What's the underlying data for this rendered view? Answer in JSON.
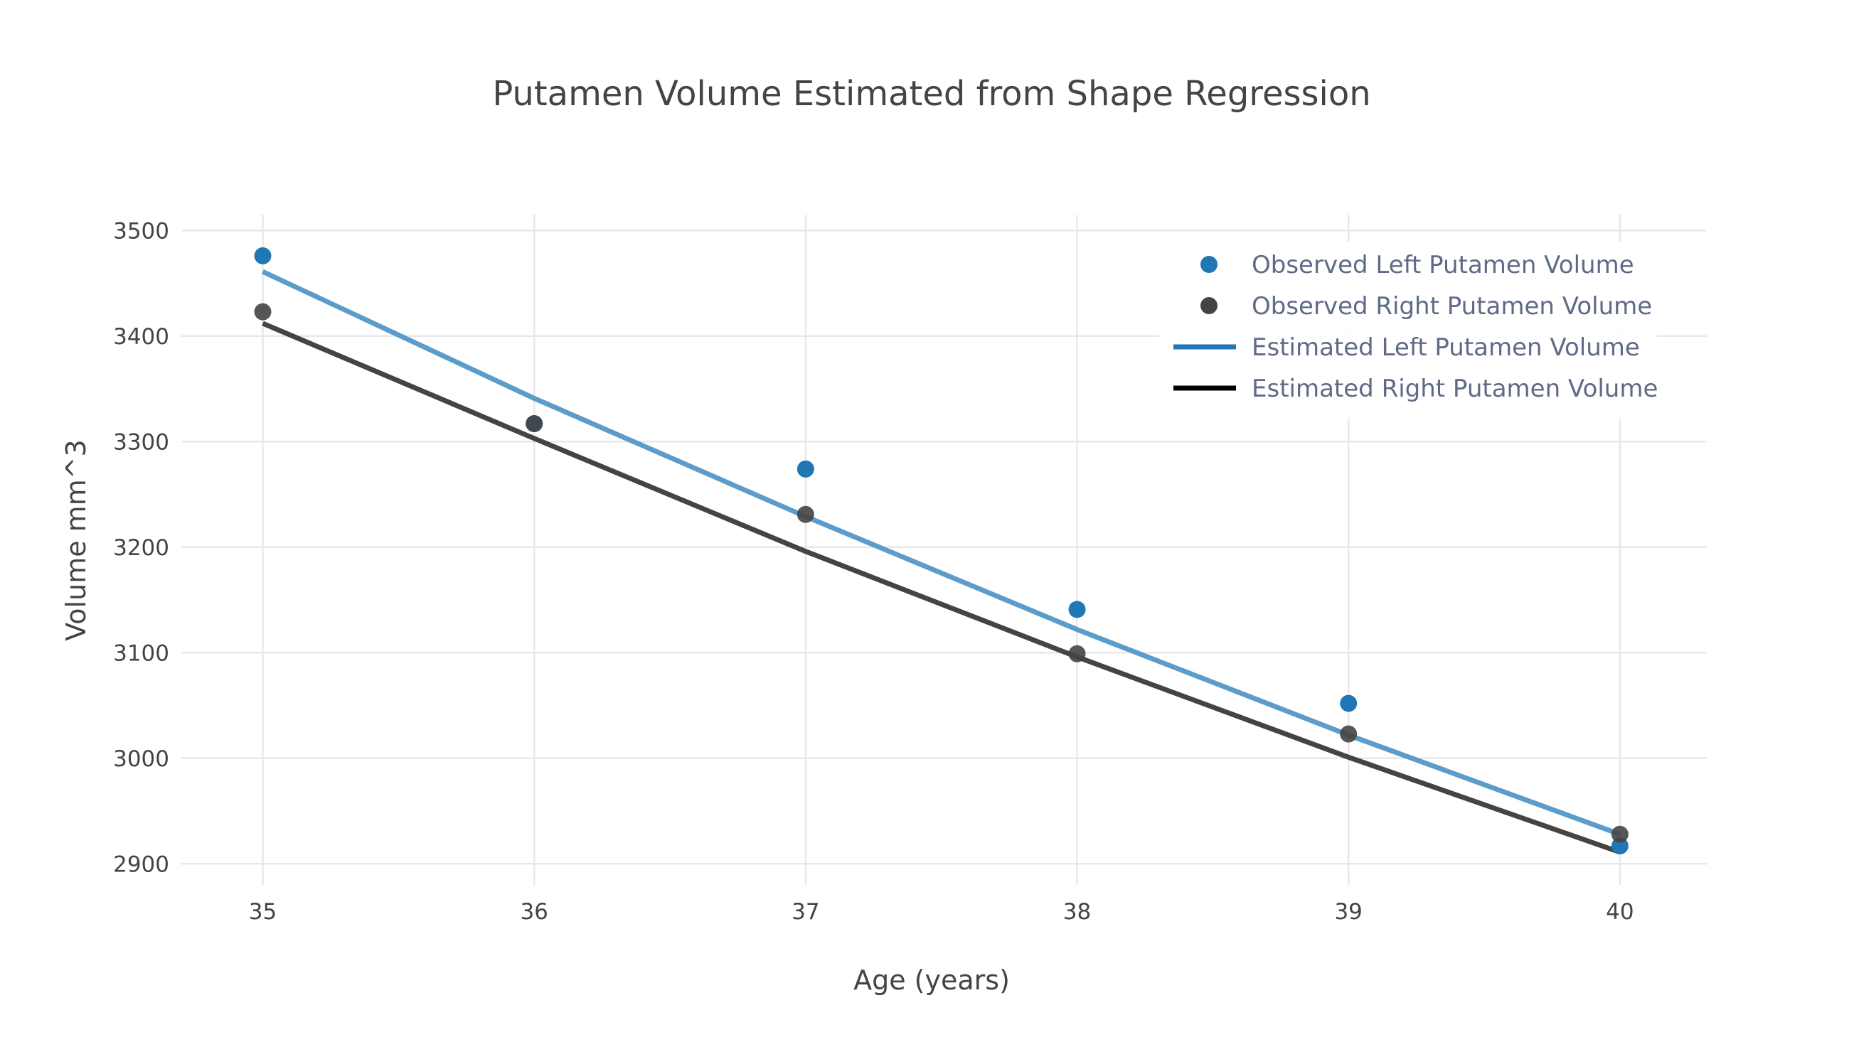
{
  "chart_data": {
    "type": "scatter",
    "title": "Putamen Volume Estimated from Shape Regression",
    "xlabel": "Age (years)",
    "ylabel": "Volume mm^3",
    "xlim": [
      34.7,
      40.32
    ],
    "ylim": [
      2880,
      3515
    ],
    "x_ticks": [
      35,
      36,
      37,
      38,
      39,
      40
    ],
    "y_ticks": [
      2900,
      3000,
      3100,
      3200,
      3300,
      3400,
      3500
    ],
    "grid": true,
    "legend_position": "top-right",
    "series": [
      {
        "name": "Observed Left Putamen Volume",
        "mode": "markers",
        "color": "#1f77b4",
        "x": [
          35,
          36,
          37,
          38,
          39,
          40
        ],
        "y": [
          3476,
          3317,
          3274,
          3141,
          3052,
          2917
        ]
      },
      {
        "name": "Observed Right Putamen Volume",
        "mode": "markers",
        "color": "#444444",
        "x": [
          35,
          36,
          37,
          38,
          39,
          40
        ],
        "y": [
          3423,
          3317,
          3231,
          3099,
          3023,
          2928
        ]
      },
      {
        "name": "Estimated Left Putamen Volume",
        "mode": "lines",
        "color": "#1f77b4",
        "x": [
          35,
          36,
          37,
          38,
          39,
          40
        ],
        "y": [
          3461,
          3341,
          3229,
          3122,
          3022,
          2928
        ]
      },
      {
        "name": "Estimated Right Putamen Volume",
        "mode": "lines",
        "color": "#000000",
        "x": [
          35,
          36,
          37,
          38,
          39,
          40
        ],
        "y": [
          3412,
          3303,
          3196,
          3096,
          3001,
          2911
        ]
      }
    ]
  }
}
